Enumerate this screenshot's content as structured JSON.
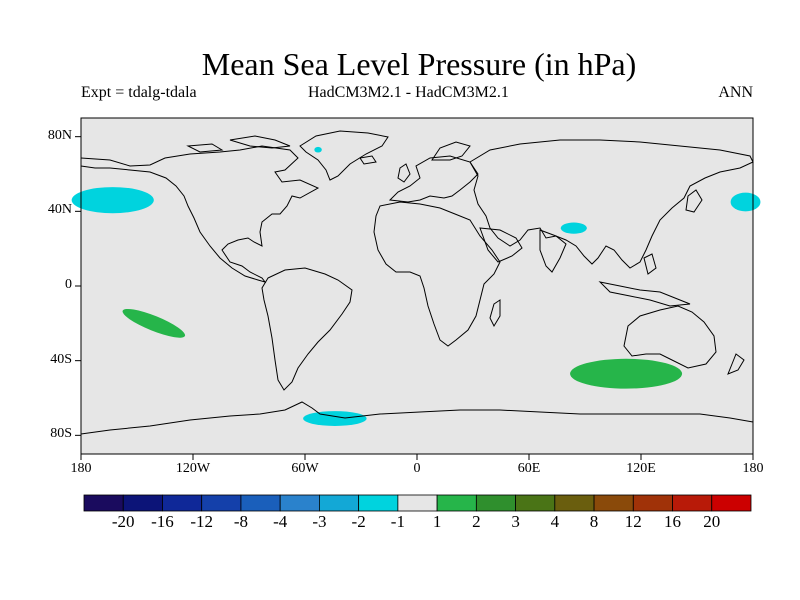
{
  "title": "Mean Sea Level Pressure (in hPa)",
  "subtitle_left": "Expt = tdalg-tdala",
  "subtitle_center": "HadCM3M2.1 - HadCM3M2.1",
  "subtitle_right": "ANN",
  "lat_ticks": [
    {
      "label": "80N",
      "lat": 80
    },
    {
      "label": "40N",
      "lat": 40
    },
    {
      "label": "0",
      "lat": 0
    },
    {
      "label": "40S",
      "lat": -40
    },
    {
      "label": "80S",
      "lat": -80
    }
  ],
  "lon_ticks": [
    {
      "label": "180",
      "lon": -180
    },
    {
      "label": "120W",
      "lon": -120
    },
    {
      "label": "60W",
      "lon": -60
    },
    {
      "label": "0",
      "lon": 0
    },
    {
      "label": "60E",
      "lon": 60
    },
    {
      "label": "120E",
      "lon": 120
    },
    {
      "label": "180",
      "lon": 180
    }
  ],
  "colorbar": {
    "colors": [
      "#1a0b5e",
      "#0c1478",
      "#0f2898",
      "#1440aa",
      "#1a5fbb",
      "#2a82cc",
      "#13a8d6",
      "#00d3de",
      "#e6e6e6",
      "#26b54a",
      "#2f8f2d",
      "#4a7416",
      "#6a5e0e",
      "#8a4a0a",
      "#a03208",
      "#b81a08",
      "#cc0000"
    ],
    "labels": [
      "-20",
      "-16",
      "-12",
      "-8",
      "-4",
      "-3",
      "-2",
      "-1",
      "1",
      "2",
      "3",
      "4",
      "8",
      "12",
      "16",
      "20"
    ]
  },
  "anomaly_regions": [
    {
      "name": "north-pacific-west-negative",
      "color": "#00d3de",
      "lon": -163,
      "lat": 46,
      "rlon": 22,
      "rlat": 7
    },
    {
      "name": "north-pacific-east-negative",
      "color": "#00d3de",
      "lon": 176,
      "lat": 45,
      "rlon": 8,
      "rlat": 5
    },
    {
      "name": "central-asia-negative",
      "color": "#00d3de",
      "lon": 84,
      "lat": 31,
      "rlon": 7,
      "rlat": 3
    },
    {
      "name": "greenland-negative",
      "color": "#00d3de",
      "lon": -53,
      "lat": 73,
      "rlon": 2,
      "rlat": 1.5
    },
    {
      "name": "antarctic-peninsula-negative",
      "color": "#00d3de",
      "lon": -44,
      "lat": -71,
      "rlon": 17,
      "rlat": 4
    },
    {
      "name": "south-pacific-positive",
      "color": "#26b54a",
      "lon": -141,
      "lat": -20,
      "rlon": 18,
      "rlat": 4
    },
    {
      "name": "southern-ocean-positive",
      "color": "#26b54a",
      "lon": 112,
      "lat": -47,
      "rlon": 30,
      "rlat": 8
    }
  ]
}
